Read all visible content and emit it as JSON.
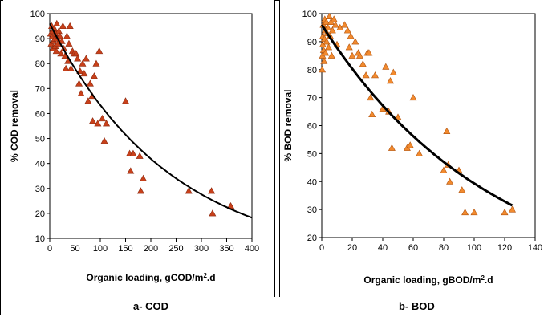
{
  "chart_data": [
    {
      "type": "scatter",
      "ylabel": "% COD removal",
      "xlabel_main": "Organic loading, gCOD/m",
      "xlabel_sup": "2",
      "xlabel_tail": ".d",
      "xlim": [
        0,
        400
      ],
      "ylim": [
        10,
        100
      ],
      "xticks": [
        "0",
        "50",
        "100",
        "150",
        "200",
        "250",
        "300",
        "350",
        "400"
      ],
      "yticks": [
        "10",
        "20",
        "30",
        "40",
        "50",
        "60",
        "70",
        "80",
        "90",
        "100"
      ],
      "grid": false,
      "marker_color": "#c8401a",
      "marker_stroke": "#8c2a10",
      "curve_color": "#000000",
      "points": [
        [
          2,
          92
        ],
        [
          3,
          88
        ],
        [
          4,
          95
        ],
        [
          5,
          91
        ],
        [
          6,
          86
        ],
        [
          7,
          93
        ],
        [
          8,
          89
        ],
        [
          9,
          94
        ],
        [
          10,
          90
        ],
        [
          11,
          87
        ],
        [
          12,
          92
        ],
        [
          13,
          85
        ],
        [
          14,
          96
        ],
        [
          15,
          90
        ],
        [
          16,
          88
        ],
        [
          18,
          93
        ],
        [
          20,
          91
        ],
        [
          22,
          84
        ],
        [
          24,
          89
        ],
        [
          26,
          95
        ],
        [
          28,
          86
        ],
        [
          30,
          83
        ],
        [
          32,
          78
        ],
        [
          34,
          91
        ],
        [
          36,
          81
        ],
        [
          38,
          88
        ],
        [
          40,
          95
        ],
        [
          42,
          78
        ],
        [
          45,
          85
        ],
        [
          48,
          84
        ],
        [
          52,
          84
        ],
        [
          55,
          82
        ],
        [
          58,
          72
        ],
        [
          60,
          77
        ],
        [
          62,
          68
        ],
        [
          65,
          80
        ],
        [
          68,
          76
        ],
        [
          72,
          82
        ],
        [
          76,
          65
        ],
        [
          80,
          72
        ],
        [
          84,
          67
        ],
        [
          85,
          57
        ],
        [
          88,
          75
        ],
        [
          92,
          80
        ],
        [
          95,
          56
        ],
        [
          98,
          85
        ],
        [
          104,
          58
        ],
        [
          108,
          49
        ],
        [
          112,
          56
        ],
        [
          150,
          65
        ],
        [
          158,
          44
        ],
        [
          160,
          37
        ],
        [
          165,
          44
        ],
        [
          178,
          43
        ],
        [
          180,
          29
        ],
        [
          185,
          34
        ],
        [
          275,
          29
        ],
        [
          320,
          29
        ],
        [
          322,
          20
        ],
        [
          358,
          23
        ]
      ],
      "curve": {
        "type": "exponential",
        "a": 96,
        "b": 0.00415,
        "x_from": 0,
        "x_to": 400
      }
    },
    {
      "type": "scatter",
      "ylabel": "% BOD removal",
      "xlabel_main": "Organic loading, gBOD/m",
      "xlabel_sup": "2",
      "xlabel_tail": ".d",
      "xlim": [
        0,
        140
      ],
      "ylim": [
        20,
        100
      ],
      "xticks": [
        "0",
        "20",
        "40",
        "60",
        "80",
        "100",
        "120",
        "140"
      ],
      "yticks": [
        "20",
        "30",
        "40",
        "50",
        "60",
        "70",
        "80",
        "90",
        "100"
      ],
      "grid": false,
      "marker_color": "#f28a2e",
      "marker_stroke": "#b25510",
      "curve_color": "#000000",
      "points": [
        [
          0.3,
          80
        ],
        [
          0.5,
          85
        ],
        [
          0.7,
          89
        ],
        [
          0.8,
          92
        ],
        [
          1,
          96
        ],
        [
          1.2,
          87
        ],
        [
          1.5,
          83
        ],
        [
          1.8,
          91
        ],
        [
          2,
          98
        ],
        [
          2.3,
          94
        ],
        [
          2.5,
          86
        ],
        [
          3,
          97
        ],
        [
          3.2,
          90
        ],
        [
          3.5,
          93
        ],
        [
          4,
          95
        ],
        [
          4.5,
          88
        ],
        [
          5,
          99
        ],
        [
          5.5,
          92
        ],
        [
          6,
          97
        ],
        [
          6.5,
          85
        ],
        [
          7,
          94
        ],
        [
          8,
          98
        ],
        [
          9,
          96
        ],
        [
          10,
          89
        ],
        [
          12,
          95
        ],
        [
          15,
          96
        ],
        [
          17,
          94
        ],
        [
          18,
          88
        ],
        [
          19,
          92
        ],
        [
          20,
          85
        ],
        [
          22,
          90
        ],
        [
          24,
          86
        ],
        [
          25,
          85
        ],
        [
          27,
          82
        ],
        [
          29,
          78
        ],
        [
          30,
          86
        ],
        [
          31,
          86
        ],
        [
          32,
          70
        ],
        [
          33,
          64
        ],
        [
          35,
          78
        ],
        [
          40,
          66
        ],
        [
          42,
          81
        ],
        [
          44,
          65
        ],
        [
          45,
          76
        ],
        [
          46,
          52
        ],
        [
          47,
          79
        ],
        [
          50,
          63
        ],
        [
          56,
          52
        ],
        [
          58,
          53
        ],
        [
          60,
          70
        ],
        [
          64,
          50
        ],
        [
          80,
          44
        ],
        [
          82,
          58
        ],
        [
          83,
          46
        ],
        [
          84,
          40
        ],
        [
          90,
          44
        ],
        [
          92,
          37
        ],
        [
          94,
          29
        ],
        [
          100,
          29
        ],
        [
          120,
          29
        ],
        [
          125,
          30
        ]
      ],
      "curve": {
        "type": "exponential",
        "a": 96,
        "b": 0.00892,
        "x_from": 0,
        "x_to": 125
      }
    }
  ],
  "captions": {
    "a": "a- COD",
    "b": "b- BOD"
  }
}
